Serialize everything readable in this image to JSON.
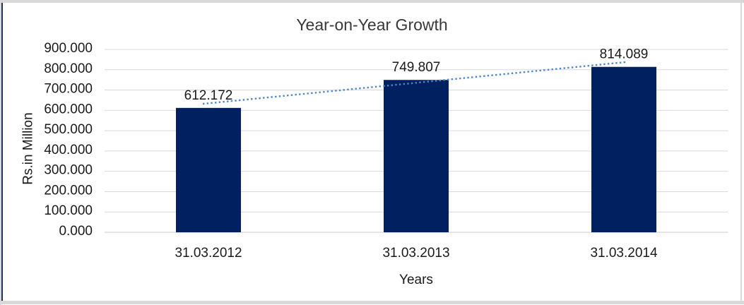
{
  "chart_data": {
    "type": "bar",
    "title": "Year-on-Year Growth",
    "categories": [
      "31.03.2012",
      "31.03.2013",
      "31.03.2014"
    ],
    "values": [
      612.172,
      749.807,
      814.089
    ],
    "data_labels": [
      "612.172",
      "749.807",
      "814.089"
    ],
    "xlabel": "Years",
    "ylabel": "Rs.in Million",
    "ylim": [
      0,
      900
    ],
    "ytick_labels": [
      "0.000",
      "100.000",
      "200.000",
      "300.000",
      "400.000",
      "500.000",
      "600.000",
      "700.000",
      "800.000",
      "900.000"
    ],
    "grid": true,
    "legend": "none",
    "bar_color": "#002060",
    "gridline_color": "#d9d9d9",
    "axis_line_color": "#c9c9c9",
    "trendline": {
      "type": "linear",
      "style": "dotted",
      "color": "#4e86c8"
    }
  },
  "frame": {
    "outer_color": "#d9d9d9",
    "left_accent_color": "#1f3352"
  }
}
